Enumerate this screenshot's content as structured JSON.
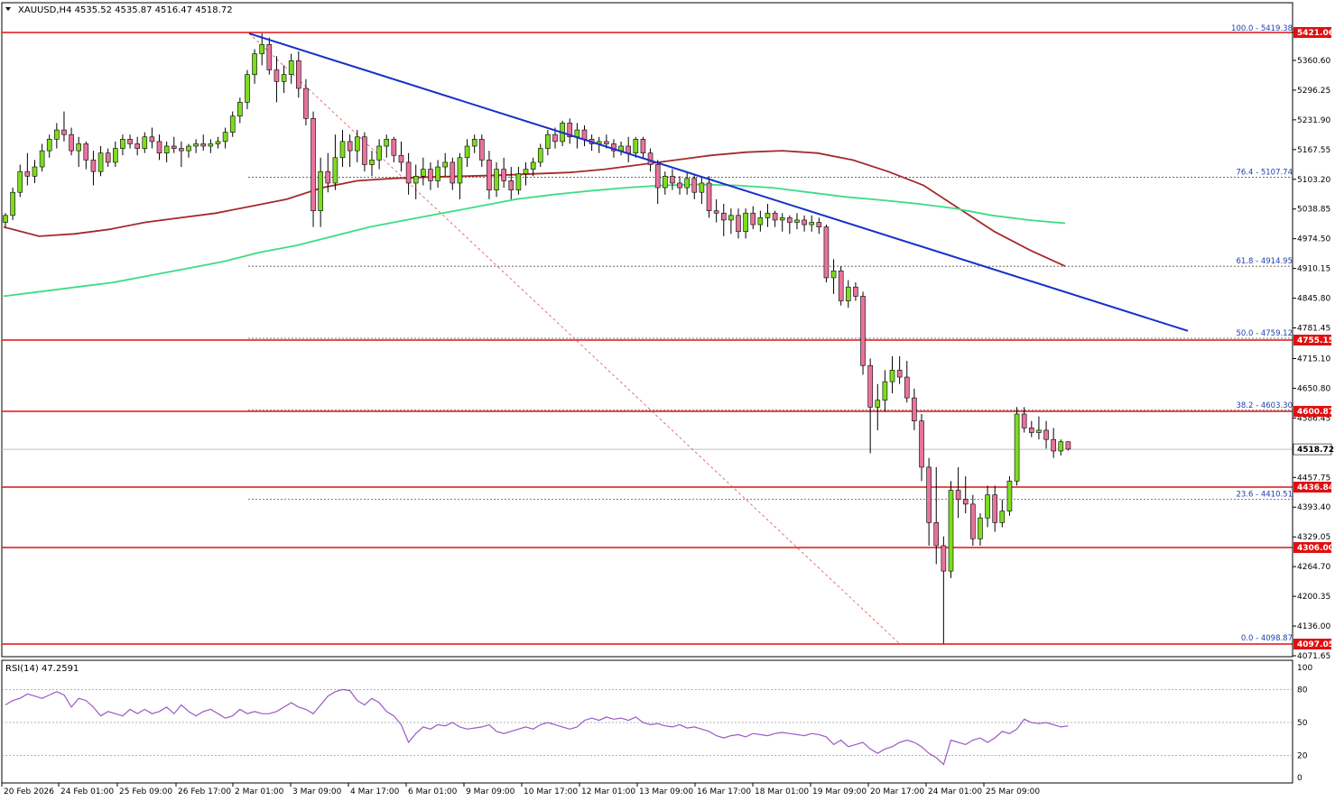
{
  "symbol_header": "XAUUSD,H4  4535.52 4535.87 4516.47 4518.72",
  "rsi_header": "RSI(14) 47.2591",
  "colors": {
    "bull": "#7ddc1f",
    "bear": "#e8739c",
    "wick": "#000000",
    "trendline": "#1730c8",
    "ma_slow": "#a52a2a",
    "ma_fast": "#3ddc84",
    "hline": "#e01010",
    "fib": "#1f3fb0",
    "rsi": "#9b59c6",
    "price_tag_red": "#e01010"
  },
  "chart_data": [
    {
      "type": "candlestick",
      "x": [
        "20 Feb 2026",
        "24 Feb 01:00",
        "25 Feb 09:00",
        "26 Feb 17:00",
        "2 Mar 01:00",
        "3 Mar 09:00",
        "4 Mar 17:00",
        "6 Mar 01:00",
        "9 Mar 09:00",
        "10 Mar 17:00",
        "12 Mar 01:00",
        "13 Mar 09:00",
        "16 Mar 17:00",
        "18 Mar 01:00",
        "19 Mar 09:00",
        "20 Mar 17:00",
        "24 Mar 01:00",
        "25 Mar 09:00"
      ],
      "ylim": [
        4071.65,
        5440
      ],
      "y_ticks": [
        "5421.06",
        "5360.60",
        "5296.25",
        "5231.90",
        "5167.55",
        "5103.20",
        "5038.85",
        "4974.50",
        "4910.15",
        "4845.80",
        "4781.45",
        "4715.10",
        "4650.80",
        "4586.45",
        "4522.10",
        "4457.75",
        "4393.40",
        "4329.05",
        "4264.70",
        "4200.35",
        "4136.00",
        "4071.65"
      ],
      "horizontal_levels": [
        "5421.06",
        "4755.15",
        "4600.87",
        "4436.84",
        "4306.00",
        "4097.05"
      ],
      "current_price": "4518.72",
      "fibonacci": [
        {
          "label": "100.0 - 5419.38",
          "value": 5419.38
        },
        {
          "label": "76.4 - 5107.74",
          "value": 5107.74
        },
        {
          "label": "61.8 - 4914.95",
          "value": 4914.95
        },
        {
          "label": "50.0 - 4759.12",
          "value": 4759.12
        },
        {
          "label": "38.2 - 4603.30",
          "value": 4603.3
        },
        {
          "label": "23.6 - 4410.51",
          "value": 4410.51
        },
        {
          "label": "0.0 - 4098.87",
          "value": 4098.87
        }
      ],
      "trendline": {
        "from": 5419,
        "to": 4775
      },
      "candles": [
        [
          5010,
          5030,
          5000,
          5025
        ],
        [
          5025,
          5085,
          5015,
          5075
        ],
        [
          5075,
          5135,
          5065,
          5120
        ],
        [
          5120,
          5160,
          5090,
          5110
        ],
        [
          5110,
          5145,
          5095,
          5130
        ],
        [
          5130,
          5180,
          5120,
          5165
        ],
        [
          5165,
          5200,
          5150,
          5190
        ],
        [
          5190,
          5225,
          5170,
          5210
        ],
        [
          5210,
          5250,
          5185,
          5200
        ],
        [
          5200,
          5215,
          5155,
          5165
        ],
        [
          5165,
          5195,
          5130,
          5180
        ],
        [
          5180,
          5185,
          5125,
          5145
        ],
        [
          5145,
          5165,
          5090,
          5120
        ],
        [
          5120,
          5175,
          5110,
          5160
        ],
        [
          5160,
          5170,
          5130,
          5140
        ],
        [
          5140,
          5185,
          5130,
          5170
        ],
        [
          5170,
          5200,
          5155,
          5190
        ],
        [
          5190,
          5200,
          5170,
          5180
        ],
        [
          5180,
          5195,
          5155,
          5170
        ],
        [
          5170,
          5205,
          5160,
          5195
        ],
        [
          5195,
          5215,
          5170,
          5185
        ],
        [
          5185,
          5200,
          5145,
          5160
        ],
        [
          5160,
          5185,
          5140,
          5175
        ],
        [
          5175,
          5195,
          5160,
          5170
        ],
        [
          5170,
          5185,
          5130,
          5165
        ],
        [
          5165,
          5180,
          5150,
          5175
        ],
        [
          5175,
          5190,
          5160,
          5180
        ],
        [
          5180,
          5200,
          5165,
          5175
        ],
        [
          5175,
          5190,
          5160,
          5180
        ],
        [
          5180,
          5195,
          5170,
          5185
        ],
        [
          5185,
          5215,
          5170,
          5205
        ],
        [
          5205,
          5250,
          5195,
          5240
        ],
        [
          5240,
          5280,
          5225,
          5270
        ],
        [
          5270,
          5340,
          5255,
          5330
        ],
        [
          5330,
          5385,
          5310,
          5375
        ],
        [
          5375,
          5419,
          5350,
          5395
        ],
        [
          5395,
          5410,
          5330,
          5340
        ],
        [
          5340,
          5370,
          5270,
          5315
        ],
        [
          5315,
          5350,
          5290,
          5330
        ],
        [
          5330,
          5375,
          5310,
          5360
        ],
        [
          5360,
          5380,
          5280,
          5300
        ],
        [
          5300,
          5320,
          5220,
          5235
        ],
        [
          5235,
          5250,
          5000,
          5035
        ],
        [
          5035,
          5150,
          5000,
          5120
        ],
        [
          5120,
          5160,
          5075,
          5095
        ],
        [
          5095,
          5200,
          5080,
          5150
        ],
        [
          5150,
          5210,
          5130,
          5185
        ],
        [
          5185,
          5200,
          5130,
          5165
        ],
        [
          5165,
          5210,
          5140,
          5195
        ],
        [
          5195,
          5205,
          5120,
          5135
        ],
        [
          5135,
          5165,
          5110,
          5145
        ],
        [
          5145,
          5190,
          5125,
          5175
        ],
        [
          5175,
          5200,
          5150,
          5190
        ],
        [
          5190,
          5195,
          5140,
          5155
        ],
        [
          5155,
          5185,
          5120,
          5140
        ],
        [
          5140,
          5160,
          5070,
          5095
        ],
        [
          5095,
          5135,
          5060,
          5110
        ],
        [
          5110,
          5150,
          5090,
          5125
        ],
        [
          5125,
          5140,
          5080,
          5100
        ],
        [
          5100,
          5145,
          5085,
          5130
        ],
        [
          5130,
          5160,
          5110,
          5140
        ],
        [
          5140,
          5150,
          5080,
          5095
        ],
        [
          5095,
          5160,
          5060,
          5150
        ],
        [
          5150,
          5190,
          5130,
          5175
        ],
        [
          5175,
          5200,
          5160,
          5190
        ],
        [
          5190,
          5200,
          5130,
          5145
        ],
        [
          5145,
          5165,
          5060,
          5080
        ],
        [
          5080,
          5140,
          5065,
          5125
        ],
        [
          5125,
          5150,
          5085,
          5100
        ],
        [
          5100,
          5130,
          5060,
          5080
        ],
        [
          5080,
          5130,
          5070,
          5115
        ],
        [
          5115,
          5140,
          5090,
          5125
        ],
        [
          5125,
          5150,
          5110,
          5140
        ],
        [
          5140,
          5180,
          5130,
          5170
        ],
        [
          5170,
          5210,
          5155,
          5200
        ],
        [
          5200,
          5215,
          5170,
          5185
        ],
        [
          5185,
          5230,
          5175,
          5225
        ],
        [
          5225,
          5235,
          5180,
          5195
        ],
        [
          5195,
          5225,
          5170,
          5210
        ],
        [
          5210,
          5220,
          5175,
          5190
        ],
        [
          5190,
          5200,
          5165,
          5180
        ],
        [
          5180,
          5195,
          5160,
          5185
        ],
        [
          5185,
          5200,
          5170,
          5180
        ],
        [
          5180,
          5190,
          5150,
          5165
        ],
        [
          5165,
          5185,
          5155,
          5175
        ],
        [
          5175,
          5195,
          5140,
          5160
        ],
        [
          5160,
          5195,
          5150,
          5190
        ],
        [
          5190,
          5195,
          5150,
          5160
        ],
        [
          5160,
          5170,
          5120,
          5135
        ],
        [
          5135,
          5145,
          5050,
          5085
        ],
        [
          5085,
          5120,
          5070,
          5110
        ],
        [
          5110,
          5125,
          5080,
          5095
        ],
        [
          5095,
          5110,
          5070,
          5085
        ],
        [
          5085,
          5120,
          5070,
          5105
        ],
        [
          5105,
          5115,
          5060,
          5075
        ],
        [
          5075,
          5110,
          5050,
          5095
        ],
        [
          5095,
          5110,
          5020,
          5035
        ],
        [
          5035,
          5060,
          5010,
          5030
        ],
        [
          5030,
          5050,
          4980,
          5015
        ],
        [
          5015,
          5040,
          4985,
          5025
        ],
        [
          5025,
          5040,
          4975,
          4990
        ],
        [
          4990,
          5040,
          4975,
          5030
        ],
        [
          5030,
          5045,
          4995,
          5005
        ],
        [
          5005,
          5035,
          4990,
          5020
        ],
        [
          5020,
          5050,
          5000,
          5030
        ],
        [
          5030,
          5035,
          5000,
          5015
        ],
        [
          5015,
          5030,
          4990,
          5020
        ],
        [
          5020,
          5025,
          4985,
          5010
        ],
        [
          5010,
          5030,
          4995,
          5015
        ],
        [
          5015,
          5025,
          4990,
          5005
        ],
        [
          5005,
          5025,
          4990,
          5010
        ],
        [
          5010,
          5020,
          4985,
          5000
        ],
        [
          5000,
          5005,
          4880,
          4890
        ],
        [
          4890,
          4930,
          4855,
          4905
        ],
        [
          4905,
          4915,
          4830,
          4840
        ],
        [
          4840,
          4885,
          4825,
          4870
        ],
        [
          4870,
          4880,
          4840,
          4850
        ],
        [
          4850,
          4860,
          4680,
          4700
        ],
        [
          4700,
          4715,
          4510,
          4610
        ],
        [
          4610,
          4660,
          4560,
          4625
        ],
        [
          4625,
          4690,
          4600,
          4665
        ],
        [
          4665,
          4720,
          4640,
          4690
        ],
        [
          4690,
          4720,
          4660,
          4675
        ],
        [
          4675,
          4710,
          4620,
          4630
        ],
        [
          4630,
          4650,
          4560,
          4580
        ],
        [
          4580,
          4595,
          4450,
          4480
        ],
        [
          4480,
          4500,
          4310,
          4360
        ],
        [
          4360,
          4480,
          4270,
          4310
        ],
        [
          4310,
          4330,
          4098,
          4255
        ],
        [
          4255,
          4450,
          4240,
          4430
        ],
        [
          4430,
          4480,
          4370,
          4410
        ],
        [
          4410,
          4460,
          4380,
          4400
        ],
        [
          4400,
          4420,
          4310,
          4325
        ],
        [
          4325,
          4380,
          4310,
          4370
        ],
        [
          4370,
          4440,
          4350,
          4420
        ],
        [
          4420,
          4440,
          4340,
          4360
        ],
        [
          4360,
          4410,
          4350,
          4385
        ],
        [
          4385,
          4460,
          4375,
          4450
        ],
        [
          4450,
          4610,
          4440,
          4595
        ],
        [
          4595,
          4610,
          4555,
          4565
        ],
        [
          4565,
          4580,
          4545,
          4555
        ],
        [
          4555,
          4590,
          4540,
          4560
        ],
        [
          4560,
          4580,
          4520,
          4540
        ],
        [
          4540,
          4565,
          4500,
          4515
        ],
        [
          4515,
          4540,
          4505,
          4535
        ],
        [
          4535,
          4536,
          4516,
          4519
        ]
      ],
      "ma_slow": [
        5000,
        4980,
        4985,
        4995,
        5010,
        5020,
        5030,
        5045,
        5060,
        5085,
        5100,
        5105,
        5108,
        5110,
        5112,
        5115,
        5118,
        5125,
        5135,
        5145,
        5155,
        5162,
        5165,
        5160,
        5145,
        5120,
        5090,
        5040,
        4990,
        4950,
        4915
      ],
      "ma_fast": [
        4850,
        4860,
        4870,
        4880,
        4895,
        4910,
        4925,
        4945,
        4960,
        4980,
        5000,
        5015,
        5030,
        5045,
        5060,
        5070,
        5078,
        5085,
        5090,
        5092,
        5090,
        5085,
        5075,
        5065,
        5058,
        5050,
        5040,
        5025,
        5015,
        5008
      ],
      "rsi": {
        "ylim": [
          0,
          100
        ],
        "levels": [
          "100",
          "80",
          "50",
          "20",
          "0"
        ],
        "values": [
          66,
          70,
          72,
          76,
          74,
          72,
          75,
          78,
          75,
          64,
          72,
          70,
          64,
          56,
          60,
          58,
          56,
          62,
          58,
          62,
          58,
          60,
          64,
          58,
          66,
          60,
          56,
          60,
          62,
          58,
          54,
          56,
          62,
          58,
          60,
          58,
          58,
          60,
          64,
          68,
          64,
          62,
          58,
          66,
          74,
          78,
          80,
          79,
          70,
          66,
          72,
          68,
          60,
          56,
          48,
          32,
          40,
          46,
          44,
          48,
          47,
          50,
          46,
          44,
          45,
          46,
          48,
          42,
          40,
          42,
          44,
          46,
          44,
          48,
          50,
          48,
          46,
          44,
          46,
          52,
          54,
          52,
          55,
          53,
          54,
          52,
          55,
          50,
          48,
          49,
          47,
          46,
          48,
          45,
          46,
          44,
          42,
          38,
          36,
          38,
          39,
          37,
          40,
          39,
          38,
          40,
          41,
          40,
          39,
          38,
          40,
          39,
          37,
          30,
          34,
          28,
          30,
          32,
          26,
          22,
          26,
          28,
          32,
          34,
          32,
          28,
          22,
          18,
          12,
          34,
          32,
          30,
          34,
          36,
          32,
          36,
          42,
          40,
          44,
          53,
          50,
          49,
          50,
          48,
          46,
          47
        ]
      }
    }
  ]
}
